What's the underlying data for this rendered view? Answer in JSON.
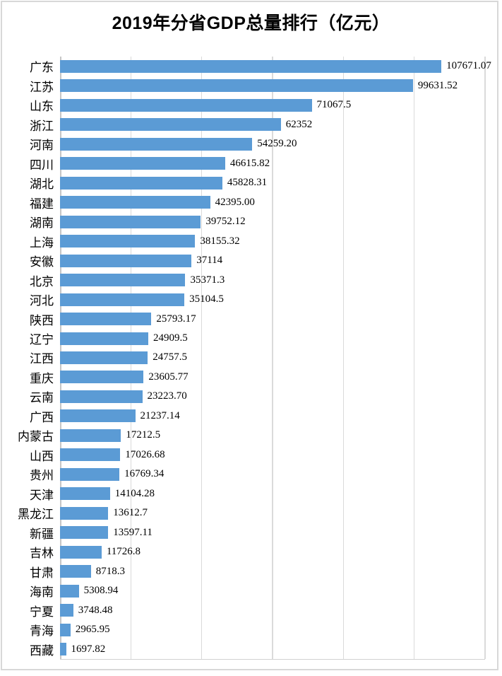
{
  "chart_data": {
    "type": "bar",
    "orientation": "horizontal",
    "title": "2019年分省GDP总量排行（亿元）",
    "unit": "亿元",
    "categories": [
      "广东",
      "江苏",
      "山东",
      "浙江",
      "河南",
      "四川",
      "湖北",
      "福建",
      "湖南",
      "上海",
      "安徽",
      "北京",
      "河北",
      "陕西",
      "辽宁",
      "江西",
      "重庆",
      "云南",
      "广西",
      "内蒙古",
      "山西",
      "贵州",
      "天津",
      "黑龙江",
      "新疆",
      "吉林",
      "甘肃",
      "海南",
      "宁夏",
      "青海",
      "西藏"
    ],
    "values": [
      107671.07,
      99631.52,
      71067.5,
      62352,
      54259.2,
      46615.82,
      45828.31,
      42395.0,
      39752.12,
      38155.32,
      37114,
      35371.3,
      35104.5,
      25793.17,
      24909.5,
      24757.5,
      23605.77,
      23223.7,
      21237.14,
      17212.5,
      17026.68,
      16769.34,
      14104.28,
      13612.7,
      13597.11,
      11726.8,
      8718.3,
      5308.94,
      3748.48,
      2965.95,
      1697.82
    ],
    "value_labels": [
      "107671.07",
      "99631.52",
      "71067.5",
      "62352",
      "54259.20",
      "46615.82",
      "45828.31",
      "42395.00",
      "39752.12",
      "38155.32",
      "37114",
      "35371.3",
      "35104.5",
      "25793.17",
      "24909.5",
      "24757.5",
      "23605.77",
      "23223.70",
      "21237.14",
      "17212.5",
      "17026.68",
      "16769.34",
      "14104.28",
      "13612.7",
      "13597.11",
      "11726.8",
      "8718.3",
      "5308.94",
      "3748.48",
      "2965.95",
      "1697.82"
    ],
    "xlim": [
      0,
      120000
    ],
    "gridline_step": 20000,
    "grid": "vertical-only",
    "legend": "none",
    "axis_tick_labels": "none",
    "data_labels_position": "outside-end"
  },
  "colors": {
    "bar": "#5b9bd5",
    "gridline": "#dadada",
    "axis_line": "#c6c6c6",
    "border": "#d8d8d8",
    "background": "#ffffff",
    "text": "#000000"
  }
}
